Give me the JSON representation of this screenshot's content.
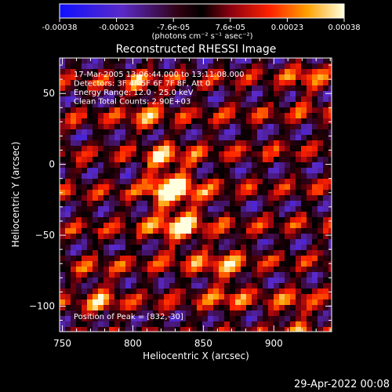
{
  "chart_data": {
    "type": "heatmap",
    "title": "Reconstructed RHESSI Image",
    "xlabel": "Heliocentric X (arcsec)",
    "ylabel": "Heliocentric Y (arcsec)",
    "xlim": [
      748,
      941
    ],
    "ylim": [
      -118,
      75
    ],
    "x_ticks": [
      750,
      800,
      850,
      900
    ],
    "y_ticks": [
      50,
      0,
      -50,
      -100
    ],
    "colorbar": {
      "min": -0.00038,
      "max": 0.00038,
      "tick_labels": [
        "-0.00038",
        "-0.00023",
        "-7.6e-05",
        "7.6e-05",
        "0.00023",
        "0.00038"
      ],
      "units": "(photons cm⁻² s⁻¹ asec⁻²)"
    },
    "annotations": [
      "17-Mar-2005 13:06:44.000 to 13:11:08.000",
      "Detectors: 3F 4F 5F 6F 7F 8F, Att 0",
      "Energy Range: 12.0 - 25.0 keV",
      "Clean    Total Counts: 2.90E+03"
    ],
    "peak_label": "Position of Peak = [832,-30]",
    "peak_position": [
      832,
      -30
    ]
  },
  "footer": {
    "timestamp": "29-Apr-2022 00:08"
  }
}
